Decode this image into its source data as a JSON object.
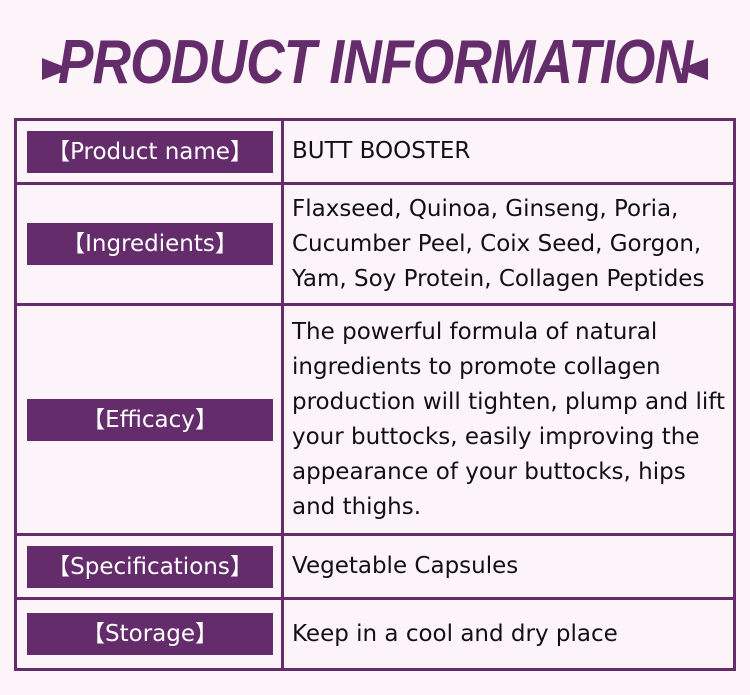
{
  "title": "PRODUCT INFORMATION",
  "colors": {
    "accent": "#652c6c",
    "background": "#fdf4fa"
  },
  "rows": [
    {
      "label": "【Product name】",
      "value": "BUTT BOOSTER"
    },
    {
      "label": "【Ingredients】",
      "value": "Flaxseed, Quinoa, Ginseng, Poria, Cucumber Peel, Coix Seed, Gorgon, Yam, Soy Protein, Collagen Peptides"
    },
    {
      "label": "【Efficacy】",
      "value": "The powerful formula of natural ingredients to promote collagen production will tighten, plump and lift your buttocks, easily improving the appearance of your buttocks, hips and thighs."
    },
    {
      "label": "【Specifications】",
      "value": "Vegetable Capsules"
    },
    {
      "label": "【Storage】",
      "value": "Keep in a cool and dry place"
    }
  ]
}
